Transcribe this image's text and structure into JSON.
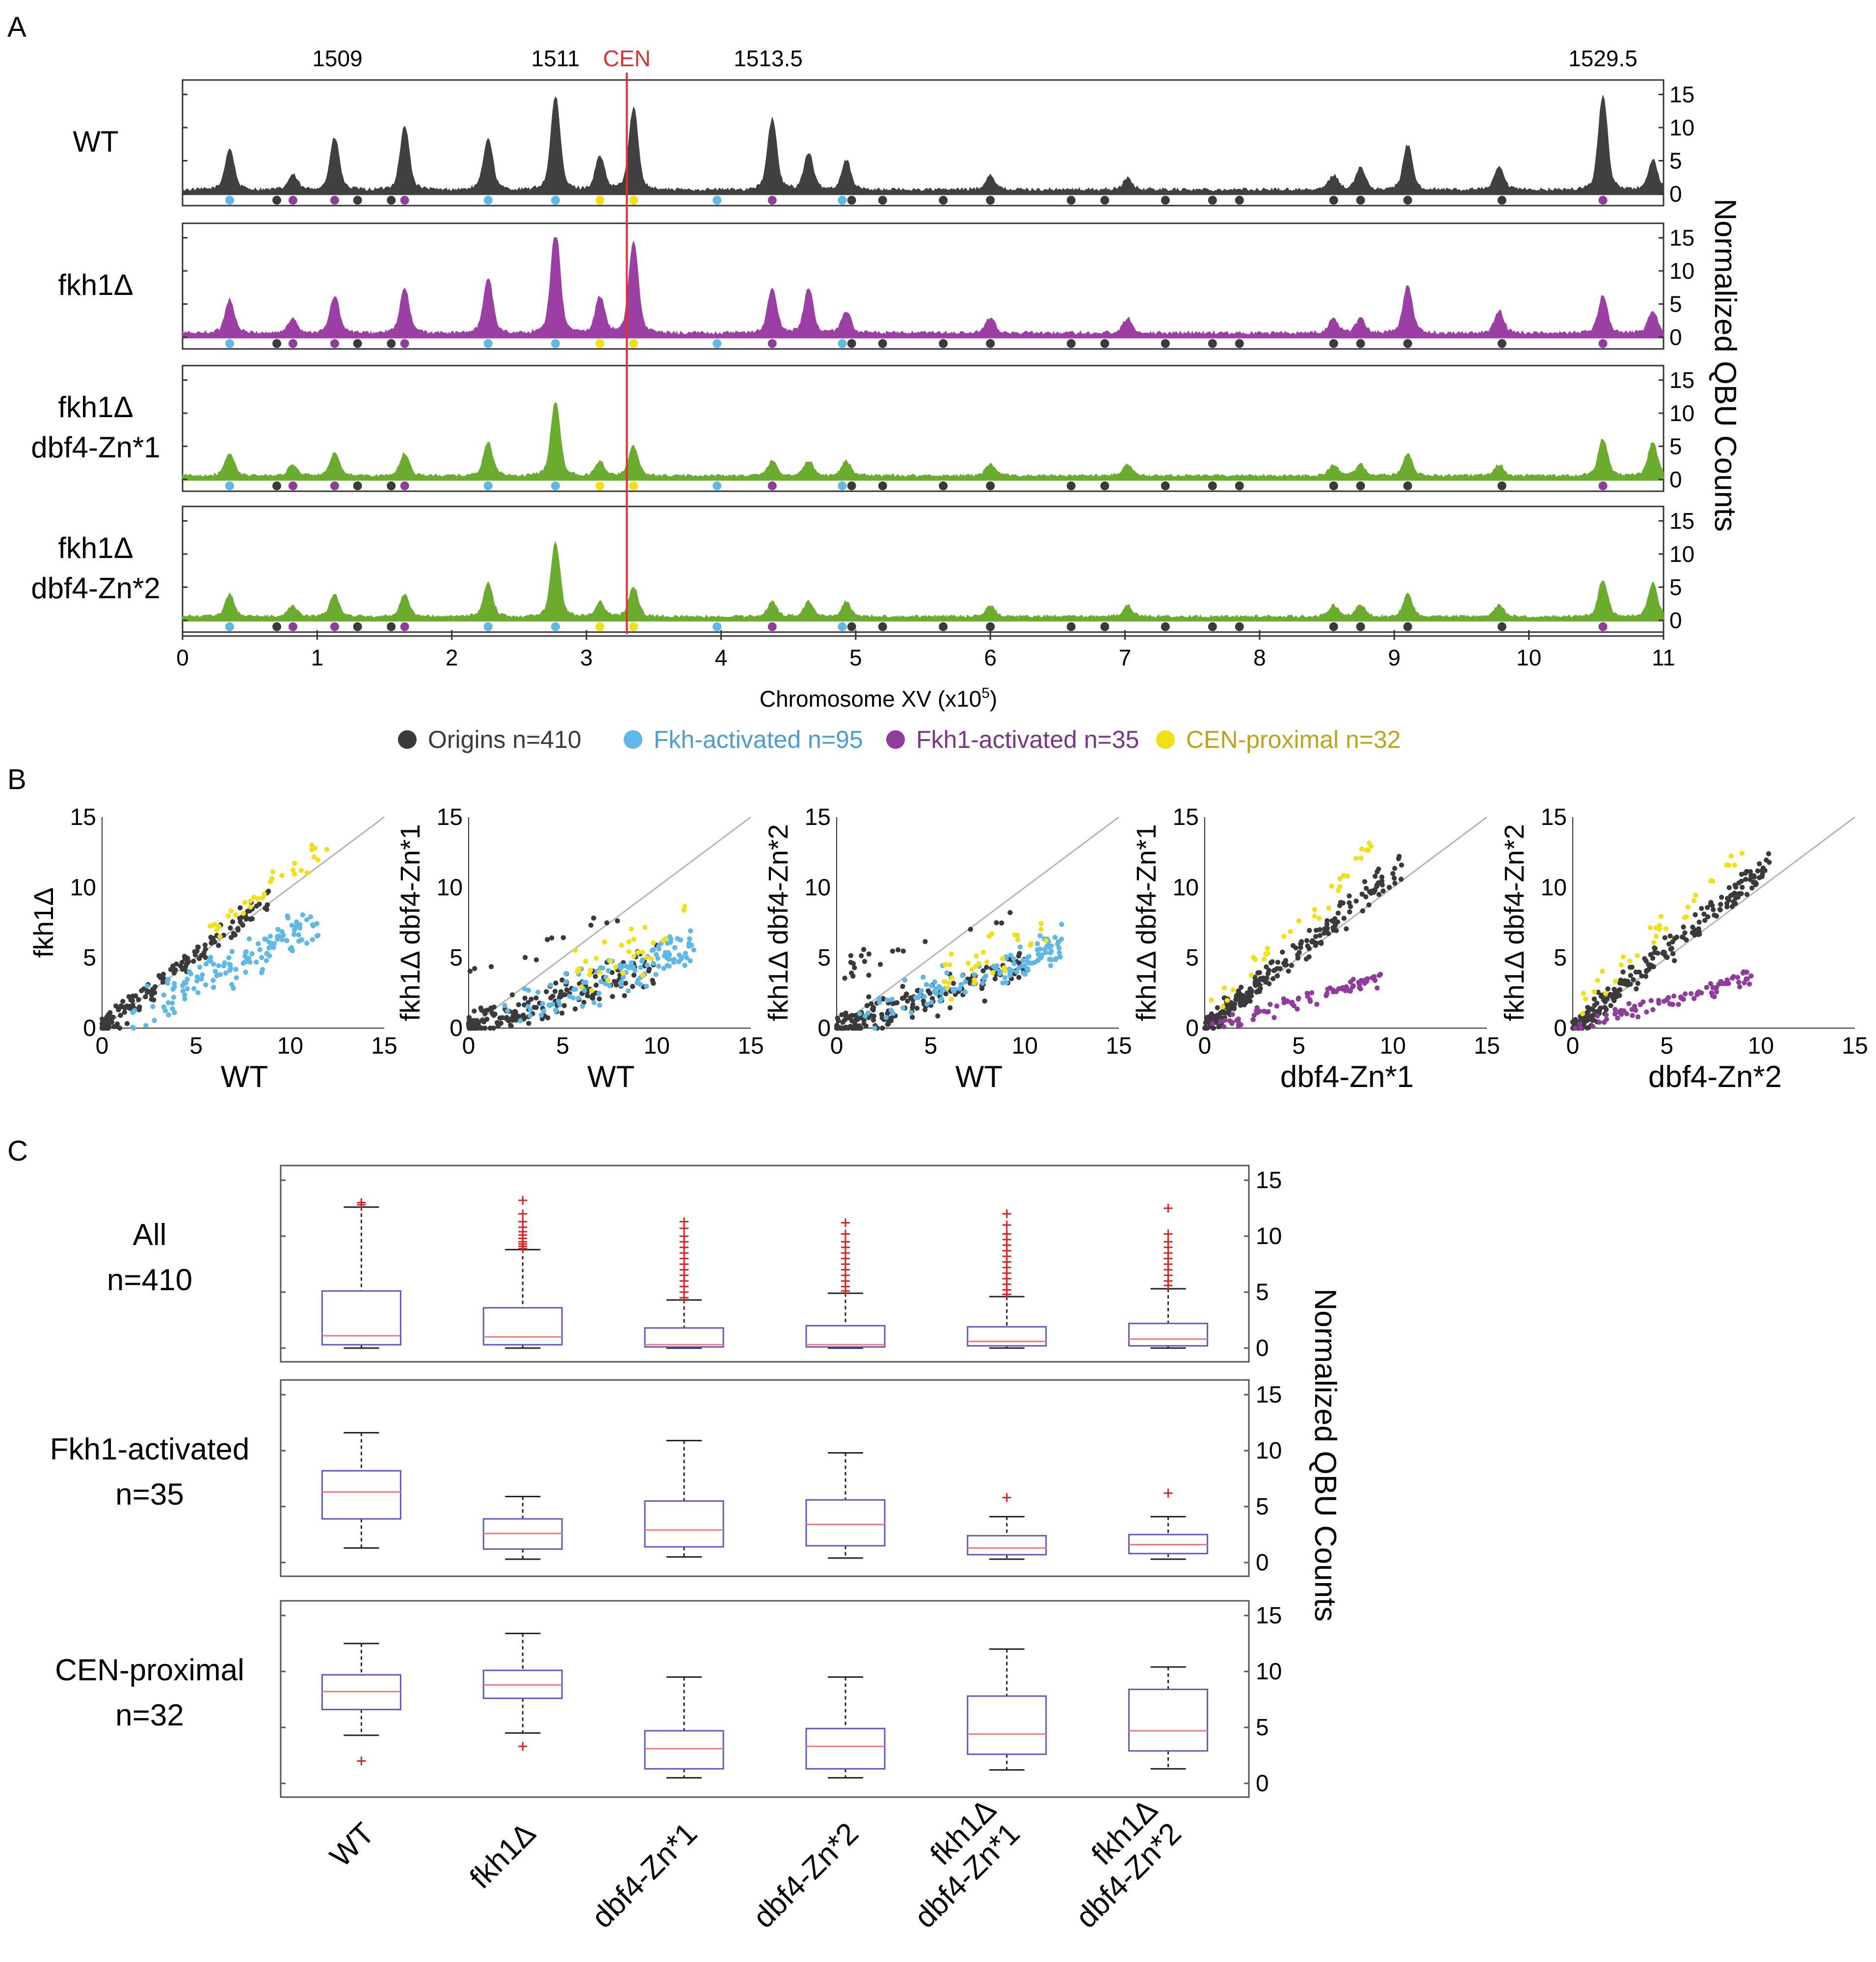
{
  "colors": {
    "origin": "#3a3a3a",
    "fkh_activated": "#5fb8e6",
    "fkh1_activated": "#8e3d9b",
    "cen_proximal": "#f2e016",
    "cen_line": "#e23030",
    "wt_fill": "#404040",
    "fkh1_fill": "#9c3fa5",
    "dbf4_fill": "#6aac2e",
    "box_edge": "#5b5bc8",
    "median": "#f07a7a",
    "outlier": "#e02020",
    "diagonal": "#b5b5b5",
    "legend_fkh_text": "#4a9fd0",
    "legend_fkh1_text": "#7a3488",
    "legend_cen_text": "#c0a31b"
  },
  "panel_labels": {
    "a": "A",
    "b": "B",
    "c": "C"
  },
  "panel_a": {
    "ylabel": "Normalized QBU Counts",
    "xlabel_main": "Chromosome XV (x10",
    "xlabel_sup": "5",
    "xlabel_close": ")",
    "cen_label": "CEN",
    "top_labels": [
      {
        "text": "1509",
        "pos": 1.15
      },
      {
        "text": "1511",
        "pos": 2.77
      },
      {
        "text": "1513.5",
        "pos": 4.35
      },
      {
        "text": "1529.5",
        "pos": 10.55
      }
    ],
    "yticks": [
      "0",
      "5",
      "10",
      "15"
    ],
    "xticks": [
      "0",
      "1",
      "2",
      "3",
      "4",
      "5",
      "6",
      "7",
      "8",
      "9",
      "10",
      "11"
    ],
    "tracks": [
      {
        "label_lines": [
          "WT"
        ],
        "color_key": "wt_fill",
        "scale": 1.0
      },
      {
        "label_lines": [
          "fkh1Δ"
        ],
        "color_key": "fkh1_fill",
        "scale": 1.0
      },
      {
        "label_lines": [
          "fkh1Δ",
          "dbf4-Zn*1"
        ],
        "color_key": "dbf4_fill",
        "scale": 0.55
      },
      {
        "label_lines": [
          "fkh1Δ",
          "dbf4-Zn*2"
        ],
        "color_key": "dbf4_fill",
        "scale": 0.55
      }
    ],
    "peaks": [
      {
        "pos": 0.35,
        "h": [
          5.5,
          4.5,
          3,
          3
        ]
      },
      {
        "pos": 0.82,
        "h": [
          2,
          2,
          1.5,
          1.5
        ]
      },
      {
        "pos": 1.13,
        "h": [
          7,
          5,
          3,
          3
        ]
      },
      {
        "pos": 1.65,
        "h": [
          8.5,
          6,
          3,
          3
        ]
      },
      {
        "pos": 2.27,
        "h": [
          7,
          7.5,
          4.5,
          4.5
        ]
      },
      {
        "pos": 2.77,
        "h": [
          12.5,
          14,
          10,
          10
        ]
      },
      {
        "pos": 3.1,
        "h": [
          4.5,
          5,
          2,
          2
        ]
      },
      {
        "pos": 3.35,
        "h": [
          11,
          12.5,
          4,
          4
        ]
      },
      {
        "pos": 4.38,
        "h": [
          9.5,
          6,
          2,
          2
        ]
      },
      {
        "pos": 4.65,
        "h": [
          5,
          6,
          2,
          2
        ]
      },
      {
        "pos": 4.93,
        "h": [
          4,
          3,
          2,
          2
        ]
      },
      {
        "pos": 6.0,
        "h": [
          2,
          2,
          1.5,
          1.5
        ]
      },
      {
        "pos": 7.02,
        "h": [
          1.5,
          2,
          1.5,
          1.5
        ]
      },
      {
        "pos": 8.55,
        "h": [
          2,
          2,
          1.5,
          1.5
        ]
      },
      {
        "pos": 8.75,
        "h": [
          3,
          2,
          1.5,
          1.5
        ]
      },
      {
        "pos": 9.1,
        "h": [
          6,
          6.5,
          3,
          3
        ]
      },
      {
        "pos": 9.78,
        "h": [
          3,
          3,
          1.5,
          1.5
        ]
      },
      {
        "pos": 10.55,
        "h": [
          12.5,
          5,
          5,
          5
        ]
      },
      {
        "pos": 10.92,
        "h": [
          4,
          3,
          4.5,
          4.5
        ]
      }
    ],
    "origin_dots": [
      {
        "pos": 0.35,
        "type": "fkh"
      },
      {
        "pos": 0.7,
        "type": "origin"
      },
      {
        "pos": 0.82,
        "type": "fkh1"
      },
      {
        "pos": 1.13,
        "type": "fkh1"
      },
      {
        "pos": 1.3,
        "type": "origin"
      },
      {
        "pos": 1.55,
        "type": "origin"
      },
      {
        "pos": 1.65,
        "type": "fkh1"
      },
      {
        "pos": 2.27,
        "type": "fkh"
      },
      {
        "pos": 2.77,
        "type": "fkh"
      },
      {
        "pos": 3.1,
        "type": "cen"
      },
      {
        "pos": 3.35,
        "type": "cen"
      },
      {
        "pos": 3.97,
        "type": "fkh"
      },
      {
        "pos": 4.38,
        "type": "fkh1"
      },
      {
        "pos": 4.9,
        "type": "fkh"
      },
      {
        "pos": 4.97,
        "type": "origin"
      },
      {
        "pos": 5.2,
        "type": "origin"
      },
      {
        "pos": 5.65,
        "type": "origin"
      },
      {
        "pos": 6.0,
        "type": "origin"
      },
      {
        "pos": 6.6,
        "type": "origin"
      },
      {
        "pos": 6.85,
        "type": "origin"
      },
      {
        "pos": 7.3,
        "type": "origin"
      },
      {
        "pos": 7.65,
        "type": "origin"
      },
      {
        "pos": 7.85,
        "type": "origin"
      },
      {
        "pos": 8.55,
        "type": "origin"
      },
      {
        "pos": 8.75,
        "type": "origin"
      },
      {
        "pos": 9.1,
        "type": "origin"
      },
      {
        "pos": 9.8,
        "type": "origin"
      },
      {
        "pos": 10.55,
        "type": "fkh1"
      }
    ],
    "cen_position": 3.3,
    "x_range": [
      0,
      11
    ],
    "y_range": [
      0,
      15
    ]
  },
  "legend": [
    {
      "label": "Origins n=410",
      "color_key": "origin",
      "text_key": "origin"
    },
    {
      "label": "Fkh-activated n=95",
      "color_key": "fkh_activated",
      "text_key": "legend_fkh_text"
    },
    {
      "label": "Fkh1-activated n=35",
      "color_key": "fkh1_activated",
      "text_key": "legend_fkh1_text"
    },
    {
      "label": "CEN-proximal n=32",
      "color_key": "cen_proximal",
      "text_key": "legend_cen_text"
    }
  ],
  "chart_data": [
    {
      "type": "scatter",
      "panel": "A",
      "title": "",
      "xlabel": "Chromosome XV (x10^5)",
      "ylabel": "Normalized QBU Counts",
      "xlim": [
        0,
        11
      ],
      "ylim": [
        0,
        15
      ],
      "series": [
        "WT",
        "fkh1Δ",
        "fkh1Δ dbf4-Zn*1",
        "fkh1Δ dbf4-Zn*2"
      ]
    },
    {
      "type": "scatter",
      "panel": "B",
      "ticks": [
        "0",
        "5",
        "10",
        "15"
      ],
      "xlim": [
        0,
        15
      ],
      "ylim": [
        0,
        15
      ],
      "plots": [
        {
          "xlabel": "WT",
          "ylabel": "fkh1Δ",
          "cloud": "wt_vs_fkh1",
          "groups": [
            "origin",
            "fkh",
            "cen"
          ]
        },
        {
          "xlabel": "WT",
          "ylabel": "fkh1Δ dbf4-Zn*1",
          "cloud": "wt_vs_dbf4",
          "groups": [
            "origin",
            "fkh",
            "cen"
          ]
        },
        {
          "xlabel": "WT",
          "ylabel": "fkh1Δ dbf4-Zn*2",
          "cloud": "wt_vs_dbf4",
          "groups": [
            "origin",
            "fkh",
            "cen"
          ]
        },
        {
          "xlabel": "dbf4-Zn*1",
          "ylabel": "fkh1Δ dbf4-Zn*1",
          "cloud": "dbf4_vs_double",
          "groups": [
            "origin",
            "fkh1",
            "cen"
          ]
        },
        {
          "xlabel": "dbf4-Zn*2",
          "ylabel": "fkh1Δ dbf4-Zn*2",
          "cloud": "dbf4_vs_double",
          "groups": [
            "origin",
            "fkh1",
            "cen"
          ]
        }
      ]
    },
    {
      "type": "box",
      "panel": "C",
      "ylabel": "Normalized QBU Counts",
      "ylim": [
        0,
        15
      ],
      "yticks": [
        "0",
        "5",
        "10",
        "15"
      ],
      "categories": [
        [
          "WT"
        ],
        [
          "fkh1Δ"
        ],
        [
          "dbf4-Zn*1"
        ],
        [
          "dbf4-Zn*2"
        ],
        [
          "fkh1Δ",
          "dbf4-Zn*1"
        ],
        [
          "fkh1Δ",
          "dbf4-Zn*2"
        ]
      ],
      "rows": [
        {
          "label_lines": [
            "All",
            "n=410"
          ],
          "boxes": [
            {
              "wlo": 0,
              "q1": 0.3,
              "med": 1.1,
              "q3": 5.1,
              "whi": 12.6,
              "out": [
                12.8,
                13.0
              ]
            },
            {
              "wlo": 0,
              "q1": 0.3,
              "med": 1.0,
              "q3": 3.6,
              "whi": 8.8,
              "out": [
                8.9,
                9.1,
                9.3,
                9.5,
                9.8,
                10.1,
                10.4,
                10.8,
                11.3,
                12.0,
                13.2
              ]
            },
            {
              "wlo": 0,
              "q1": 0.1,
              "med": 0.3,
              "q3": 1.8,
              "whi": 4.3,
              "out": [
                4.5,
                5.0,
                5.5,
                6.0,
                6.5,
                7.0,
                7.5,
                8.0,
                8.5,
                9.0,
                9.5,
                10.0,
                10.7,
                11.3
              ]
            },
            {
              "wlo": 0,
              "q1": 0.1,
              "med": 0.3,
              "q3": 2.0,
              "whi": 4.9,
              "out": [
                5.1,
                5.5,
                6.0,
                6.5,
                7.0,
                7.5,
                8.0,
                8.5,
                9.0,
                9.5,
                10.2,
                11.2
              ]
            },
            {
              "wlo": 0,
              "q1": 0.2,
              "med": 0.6,
              "q3": 1.9,
              "whi": 4.6,
              "out": [
                4.8,
                5.2,
                5.7,
                6.2,
                6.7,
                7.2,
                7.7,
                8.2,
                8.7,
                9.2,
                9.7,
                10.2,
                11.0,
                12.0
              ]
            },
            {
              "wlo": 0,
              "q1": 0.2,
              "med": 0.8,
              "q3": 2.2,
              "whi": 5.3,
              "out": [
                5.6,
                6.0,
                6.5,
                7.0,
                7.5,
                8.0,
                8.5,
                9.0,
                9.5,
                10.2,
                12.5
              ]
            }
          ]
        },
        {
          "label_lines": [
            "Fkh1-activated",
            "n=35"
          ],
          "boxes": [
            {
              "wlo": 1.3,
              "q1": 3.9,
              "med": 6.3,
              "q3": 8.2,
              "whi": 11.6,
              "out": []
            },
            {
              "wlo": 0.3,
              "q1": 1.2,
              "med": 2.6,
              "q3": 3.9,
              "whi": 5.9,
              "out": []
            },
            {
              "wlo": 0.5,
              "q1": 1.4,
              "med": 2.9,
              "q3": 5.5,
              "whi": 10.9,
              "out": []
            },
            {
              "wlo": 0.4,
              "q1": 1.5,
              "med": 3.4,
              "q3": 5.6,
              "whi": 9.8,
              "out": []
            },
            {
              "wlo": 0.3,
              "q1": 0.7,
              "med": 1.3,
              "q3": 2.4,
              "whi": 4.1,
              "out": [
                5.8
              ]
            },
            {
              "wlo": 0.3,
              "q1": 0.8,
              "med": 1.6,
              "q3": 2.5,
              "whi": 4.1,
              "out": [
                6.2
              ]
            }
          ]
        },
        {
          "label_lines": [
            "CEN-proximal",
            "n=32"
          ],
          "boxes": [
            {
              "wlo": 4.3,
              "q1": 6.6,
              "med": 8.2,
              "q3": 9.7,
              "whi": 12.5,
              "out": [
                2.0
              ]
            },
            {
              "wlo": 4.5,
              "q1": 7.6,
              "med": 8.8,
              "q3": 10.1,
              "whi": 13.4,
              "out": [
                3.3
              ]
            },
            {
              "wlo": 0.5,
              "q1": 1.3,
              "med": 3.1,
              "q3": 4.7,
              "whi": 9.5,
              "out": []
            },
            {
              "wlo": 0.5,
              "q1": 1.3,
              "med": 3.3,
              "q3": 4.9,
              "whi": 9.5,
              "out": []
            },
            {
              "wlo": 1.2,
              "q1": 2.6,
              "med": 4.4,
              "q3": 7.8,
              "whi": 12.0,
              "out": []
            },
            {
              "wlo": 1.3,
              "q1": 2.9,
              "med": 4.7,
              "q3": 8.4,
              "whi": 10.4,
              "out": []
            }
          ]
        }
      ]
    }
  ]
}
